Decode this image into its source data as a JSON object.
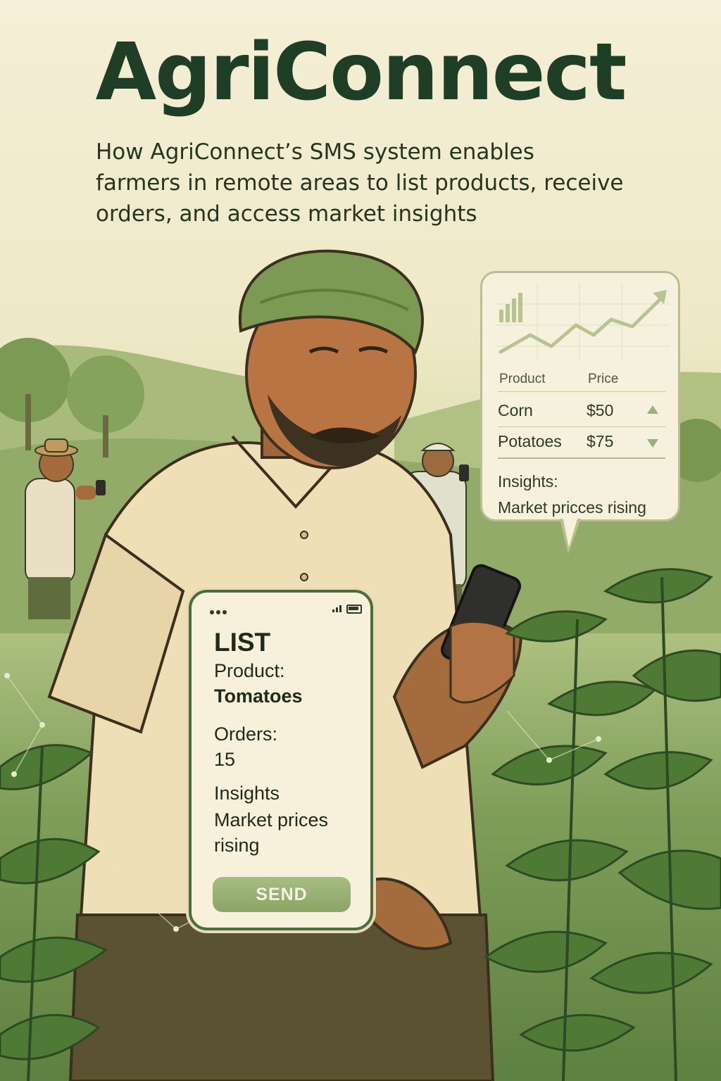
{
  "header": {
    "title": "AgriConnect",
    "subtitle_lines": [
      "How AgriConnect’s SMS system enables",
      "farmers in remote areas to list products, receive",
      "orders, and access market insights"
    ]
  },
  "market_card": {
    "chart_icon": "trend-up-chart-icon",
    "headers": {
      "product": "Product",
      "price": "Price"
    },
    "rows": [
      {
        "product": "Corn",
        "price": "$50",
        "trend": "up"
      },
      {
        "product": "Potatoes",
        "price": "$75",
        "trend": "down"
      }
    ],
    "insights_label": "Insights:",
    "insights_text": "Market pricces rising"
  },
  "sms_phone": {
    "command": "LIST",
    "product_label": "Product:",
    "product_value": "Tomatoes",
    "orders_label": "Orders:",
    "orders_value": "15",
    "insights_label": "Insights",
    "insights_line1": "Market prices",
    "insights_line2": "rising",
    "send_label": "SEND"
  },
  "colors": {
    "title": "#1f3e26",
    "accent_green": "#8aa566",
    "leaf_green": "#4f7a36",
    "background": "#f1ecd3"
  }
}
